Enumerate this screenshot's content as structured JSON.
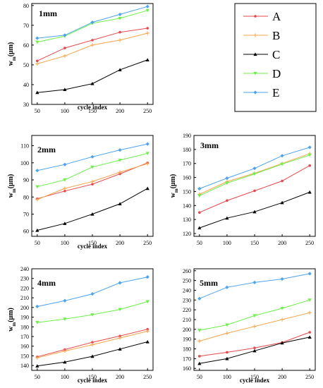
{
  "chart_data": [
    {
      "type": "line",
      "title": "1mm",
      "xlabel": "cycle index",
      "ylabel_main": "w",
      "ylabel_sub": "m",
      "ylabel_unit": "(μm)",
      "x": [
        50,
        100,
        150,
        200,
        250
      ],
      "xlim": [
        40,
        260
      ],
      "ylim": [
        30,
        81
      ],
      "yticks": [
        30,
        40,
        50,
        60,
        70,
        80
      ],
      "grid": false,
      "series": [
        {
          "name": "A",
          "values": [
            52.0,
            58.5,
            62.5,
            66.5,
            68.5
          ]
        },
        {
          "name": "B",
          "values": [
            50.5,
            54.5,
            60.0,
            62.5,
            66.0
          ]
        },
        {
          "name": "C",
          "values": [
            36.0,
            37.5,
            40.5,
            47.5,
            52.5
          ]
        },
        {
          "name": "D",
          "values": [
            61.5,
            64.5,
            71.0,
            73.5,
            77.5
          ]
        },
        {
          "name": "E",
          "values": [
            63.5,
            65.0,
            71.5,
            75.5,
            79.5
          ]
        }
      ]
    },
    {
      "type": "line",
      "title": "2mm",
      "xlabel": "cycle index",
      "ylabel_main": "w",
      "ylabel_sub": "m",
      "ylabel_unit": "(μm)",
      "x": [
        50,
        100,
        150,
        200,
        250
      ],
      "xlim": [
        40,
        260
      ],
      "ylim": [
        57,
        116
      ],
      "yticks": [
        60,
        70,
        80,
        90,
        100,
        110
      ],
      "grid": false,
      "series": [
        {
          "name": "A",
          "values": [
            79.0,
            83.5,
            87.5,
            93.5,
            100.0
          ]
        },
        {
          "name": "B",
          "values": [
            78.5,
            85.0,
            89.0,
            94.5,
            99.5
          ]
        },
        {
          "name": "C",
          "values": [
            60.5,
            64.5,
            70.0,
            76.0,
            85.0
          ]
        },
        {
          "name": "D",
          "values": [
            86.0,
            90.0,
            97.5,
            101.5,
            105.5
          ]
        },
        {
          "name": "E",
          "values": [
            95.5,
            99.0,
            103.5,
            107.5,
            111.0
          ]
        }
      ]
    },
    {
      "type": "line",
      "title": "3mm",
      "xlabel": "",
      "ylabel_main": "w",
      "ylabel_sub": "m",
      "ylabel_unit": "(μm)",
      "x": [
        50,
        100,
        150,
        200,
        250
      ],
      "xlim": [
        40,
        260
      ],
      "ylim": [
        118,
        190
      ],
      "yticks": [
        120,
        130,
        140,
        150,
        160,
        170,
        180,
        190
      ],
      "grid": false,
      "series": [
        {
          "name": "A",
          "values": [
            135.0,
            143.5,
            150.5,
            157.5,
            168.5
          ]
        },
        {
          "name": "B",
          "values": [
            148.0,
            157.0,
            163.0,
            170.0,
            177.0
          ]
        },
        {
          "name": "C",
          "values": [
            124.0,
            131.0,
            135.5,
            142.0,
            149.5
          ]
        },
        {
          "name": "D",
          "values": [
            147.0,
            156.0,
            162.5,
            169.5,
            176.0
          ]
        },
        {
          "name": "E",
          "values": [
            152.0,
            159.5,
            166.5,
            175.5,
            181.5
          ]
        }
      ]
    },
    {
      "type": "line",
      "title": "4mm",
      "xlabel": "cycle index",
      "ylabel_main": "w",
      "ylabel_sub": "m",
      "ylabel_unit": "(μm)",
      "x": [
        50,
        100,
        150,
        200,
        250
      ],
      "xlim": [
        40,
        260
      ],
      "ylim": [
        135,
        240
      ],
      "yticks": [
        140,
        150,
        160,
        170,
        180,
        190,
        200,
        210,
        220,
        230,
        240
      ],
      "grid": false,
      "series": [
        {
          "name": "A",
          "values": [
            149.0,
            156.5,
            164.0,
            170.5,
            177.5
          ]
        },
        {
          "name": "B",
          "values": [
            148.0,
            155.0,
            161.5,
            168.5,
            175.5
          ]
        },
        {
          "name": "C",
          "values": [
            139.5,
            143.5,
            149.5,
            157.0,
            164.5
          ]
        },
        {
          "name": "D",
          "values": [
            184.5,
            188.0,
            192.5,
            198.0,
            206.0
          ]
        },
        {
          "name": "E",
          "values": [
            201.0,
            207.0,
            214.0,
            225.5,
            231.5
          ]
        }
      ]
    },
    {
      "type": "line",
      "title": "5mm",
      "xlabel": "cycle index",
      "ylabel_main": "",
      "ylabel_sub": "",
      "ylabel_unit": "",
      "x": [
        50,
        100,
        150,
        200,
        250
      ],
      "xlim": [
        40,
        260
      ],
      "ylim": [
        158,
        262
      ],
      "yticks": [
        160,
        170,
        180,
        190,
        200,
        210,
        220,
        230,
        240,
        250,
        260
      ],
      "grid": false,
      "series": [
        {
          "name": "A",
          "values": [
            172.5,
            176.5,
            181.0,
            186.5,
            197.0
          ]
        },
        {
          "name": "B",
          "values": [
            188.0,
            196.0,
            203.0,
            210.0,
            217.0
          ]
        },
        {
          "name": "C",
          "values": [
            165.0,
            170.0,
            178.0,
            186.0,
            192.0
          ]
        },
        {
          "name": "D",
          "values": [
            199.0,
            204.5,
            214.0,
            221.5,
            230.0
          ]
        },
        {
          "name": "E",
          "values": [
            231.5,
            243.0,
            248.0,
            251.5,
            257.0
          ]
        }
      ]
    }
  ],
  "legend": {
    "entries": [
      "A",
      "B",
      "C",
      "D",
      "E"
    ],
    "colors": [
      "#e8474b",
      "#f5a448",
      "#000000",
      "#6cf14a",
      "#4da3ee"
    ],
    "markers": [
      "circle",
      "plus",
      "triangle",
      "triangle-down",
      "diamond"
    ]
  }
}
